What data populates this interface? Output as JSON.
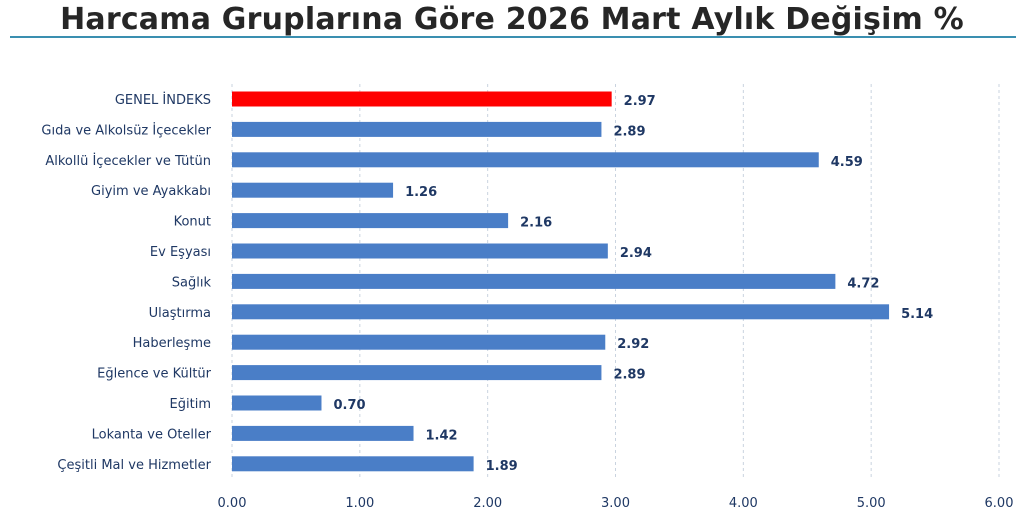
{
  "title": "Harcama Gruplarına Göre 2026 Mart Aylık Değişim %",
  "colors": {
    "highlight": "#ff0000",
    "bar": "#4a7ec7",
    "text": "#1f3864",
    "grid": "#c9d3df",
    "title_rule": "#3a8fb0"
  },
  "chart_data": {
    "type": "bar",
    "orientation": "horizontal",
    "title": "Harcama Gruplarına Göre 2026 Mart Aylık Değişim %",
    "categories": [
      "GENEL İNDEKS",
      "Gıda ve Alkolsüz İçecekler",
      "Alkollü İçecekler ve Tütün",
      "Giyim ve Ayakkabı",
      "Konut",
      "Ev Eşyası",
      "Sağlık",
      "Ulaştırma",
      "Haberleşme",
      "Eğlence ve Kültür",
      "Eğitim",
      "Lokanta ve Oteller",
      "Çeşitli Mal ve Hizmetler"
    ],
    "values": [
      2.97,
      2.89,
      4.59,
      1.26,
      2.16,
      2.94,
      4.72,
      5.14,
      2.92,
      2.89,
      0.7,
      1.42,
      1.89
    ],
    "value_labels": [
      "2.97",
      "2.89",
      "4.59",
      "1.26",
      "2.16",
      "2.94",
      "4.72",
      "5.14",
      "2.92",
      "2.89",
      "0.70",
      "1.42",
      "1.89"
    ],
    "highlight_category": "GENEL İNDEKS",
    "xticks": [
      "0.00",
      "1.00",
      "2.00",
      "3.00",
      "4.00",
      "5.00",
      "6.00"
    ],
    "xlim": [
      0,
      6
    ],
    "grid": "vertical dashed",
    "legend": "none"
  }
}
